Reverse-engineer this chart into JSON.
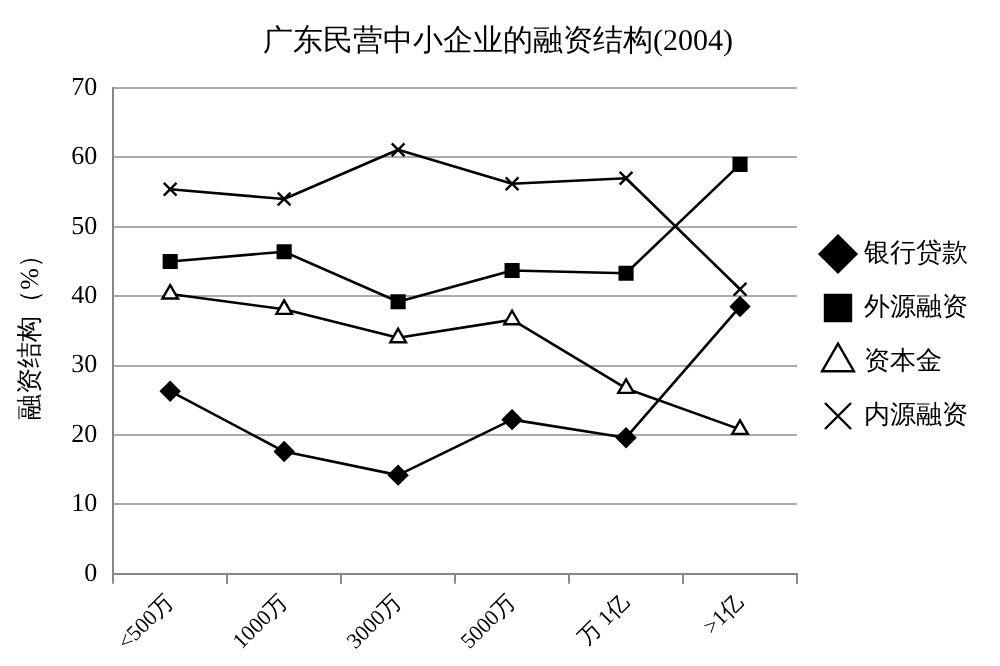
{
  "chart_data": {
    "type": "line",
    "title": "广东民营中小企业的融资结构(2004)",
    "ylabel": "融资结构（%）",
    "categories": [
      "<500万",
      "1000万",
      "3000万",
      "5000万",
      "万 1亿",
      ">1亿"
    ],
    "series": [
      {
        "name": "银行贷款",
        "color": "#000000",
        "marker": "diamond",
        "values": [
          26.3,
          17.6,
          14.2,
          22.2,
          19.6,
          38.5
        ]
      },
      {
        "name": "外源融资",
        "color": "#000000",
        "marker": "square",
        "values": [
          45,
          46.4,
          39.2,
          43.7,
          43.3,
          59
        ]
      },
      {
        "name": "资本金",
        "color": "#000000",
        "marker": "triangle",
        "values": [
          40.3,
          38.1,
          34,
          36.6,
          26.7,
          20.8
        ]
      },
      {
        "name": "内源融资",
        "color": "#000000",
        "marker": "cross",
        "values": [
          55.4,
          54,
          61.1,
          56.2,
          57,
          41
        ]
      }
    ],
    "ylim": [
      0,
      70
    ],
    "yticks": [
      0,
      10,
      20,
      30,
      40,
      50,
      60,
      70
    ],
    "grid": "y",
    "legend": "right",
    "line_style": "solid"
  }
}
